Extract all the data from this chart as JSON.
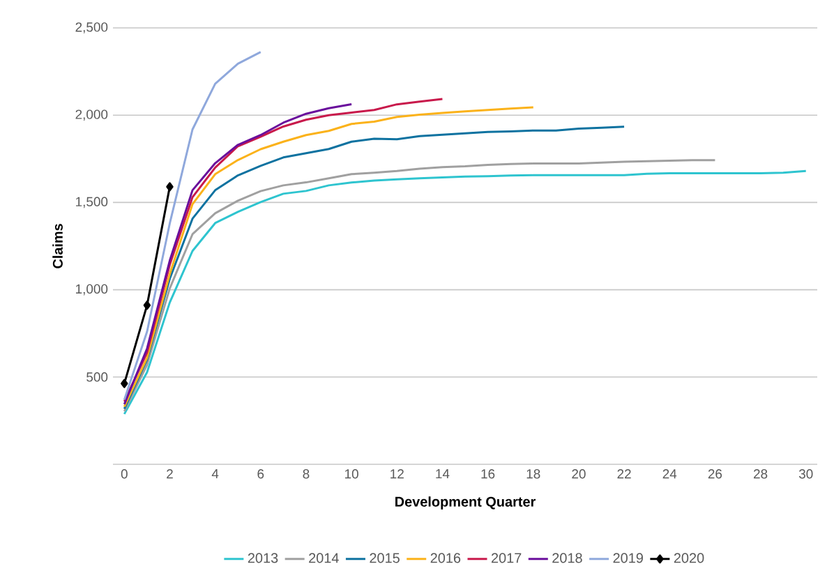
{
  "chart_data": {
    "type": "line",
    "xlabel": "Development Quarter",
    "ylabel": "Claims",
    "xlim": [
      -0.5,
      30.5
    ],
    "xticks": [
      0,
      2,
      4,
      6,
      8,
      10,
      12,
      14,
      16,
      18,
      20,
      22,
      24,
      26,
      28,
      30
    ],
    "ylim": [
      0,
      2500
    ],
    "yticks": [
      {
        "value": 0,
        "label": null
      },
      {
        "value": 500,
        "label": "500"
      },
      {
        "value": 1000,
        "label": "1,000"
      },
      {
        "value": 1500,
        "label": "1,500"
      },
      {
        "value": 2000,
        "label": "2,000"
      },
      {
        "value": 2500,
        "label": "2,500"
      }
    ],
    "grid": "y",
    "legend": "bottom",
    "series": [
      {
        "name": "2013",
        "color": "#2ec4cf",
        "x": [
          0,
          1,
          2,
          3,
          4,
          5,
          6,
          7,
          8,
          9,
          10,
          11,
          12,
          13,
          14,
          15,
          16,
          17,
          18,
          19,
          20,
          21,
          22,
          23,
          24,
          25,
          26,
          27,
          28,
          29,
          30
        ],
        "values": [
          288,
          527,
          927,
          1222,
          1382,
          1446,
          1502,
          1550,
          1566,
          1598,
          1614,
          1625,
          1632,
          1638,
          1643,
          1648,
          1650,
          1654,
          1656,
          1656,
          1656,
          1656,
          1656,
          1664,
          1667,
          1667,
          1667,
          1667,
          1667,
          1670,
          1680
        ]
      },
      {
        "name": "2014",
        "color": "#a0a0a0",
        "x": [
          0,
          1,
          2,
          3,
          4,
          5,
          6,
          7,
          8,
          9,
          10,
          11,
          12,
          13,
          14,
          15,
          16,
          17,
          18,
          19,
          20,
          21,
          22,
          23,
          24,
          25,
          26
        ],
        "values": [
          304,
          570,
          1008,
          1318,
          1438,
          1510,
          1565,
          1598,
          1615,
          1638,
          1662,
          1670,
          1680,
          1693,
          1702,
          1707,
          1715,
          1720,
          1723,
          1723,
          1723,
          1728,
          1733,
          1736,
          1739,
          1742,
          1742
        ]
      },
      {
        "name": "2015",
        "color": "#0e72a0",
        "x": [
          0,
          1,
          2,
          3,
          4,
          5,
          6,
          7,
          8,
          9,
          10,
          11,
          12,
          13,
          14,
          15,
          16,
          17,
          18,
          19,
          20,
          21,
          22
        ],
        "values": [
          318,
          600,
          1063,
          1407,
          1570,
          1655,
          1710,
          1758,
          1782,
          1806,
          1848,
          1865,
          1862,
          1880,
          1888,
          1896,
          1904,
          1907,
          1912,
          1912,
          1923,
          1928,
          1934
        ]
      },
      {
        "name": "2016",
        "color": "#fbb21a",
        "x": [
          0,
          1,
          2,
          3,
          4,
          5,
          6,
          7,
          8,
          9,
          10,
          11,
          12,
          13,
          14,
          15,
          16,
          17,
          18
        ],
        "values": [
          330,
          610,
          1090,
          1490,
          1662,
          1743,
          1805,
          1848,
          1886,
          1910,
          1950,
          1963,
          1990,
          2003,
          2013,
          2022,
          2030,
          2038,
          2045
        ]
      },
      {
        "name": "2017",
        "color": "#c8194b",
        "x": [
          0,
          1,
          2,
          3,
          4,
          5,
          6,
          7,
          8,
          9,
          10,
          11,
          12,
          13,
          14
        ],
        "values": [
          360,
          640,
          1143,
          1530,
          1700,
          1822,
          1877,
          1935,
          1974,
          2000,
          2015,
          2030,
          2062,
          2078,
          2093
        ]
      },
      {
        "name": "2018",
        "color": "#6a0e9c",
        "x": [
          0,
          1,
          2,
          3,
          4,
          5,
          6,
          7,
          8,
          9,
          10
        ],
        "values": [
          344,
          663,
          1167,
          1570,
          1725,
          1830,
          1886,
          1957,
          2008,
          2040,
          2063
        ]
      },
      {
        "name": "2019",
        "color": "#8fa8dc",
        "x": [
          0,
          1,
          2,
          3,
          4,
          5,
          6
        ],
        "values": [
          370,
          760,
          1380,
          1918,
          2180,
          2295,
          2362
        ]
      },
      {
        "name": "2020",
        "color": "#000000",
        "marker": "diamond",
        "x": [
          0,
          1,
          2
        ],
        "values": [
          463,
          911,
          1590
        ]
      }
    ]
  }
}
